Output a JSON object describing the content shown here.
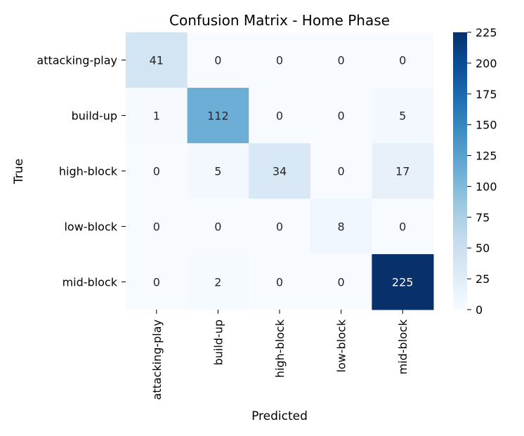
{
  "chart_data": {
    "type": "heatmap",
    "title": "Confusion Matrix - Home Phase",
    "xlabel": "Predicted",
    "ylabel": "True",
    "x_categories": [
      "attacking-play",
      "build-up",
      "high-block",
      "low-block",
      "mid-block"
    ],
    "y_categories": [
      "attacking-play",
      "build-up",
      "high-block",
      "low-block",
      "mid-block"
    ],
    "values": [
      [
        41,
        0,
        0,
        0,
        0
      ],
      [
        1,
        112,
        0,
        0,
        5
      ],
      [
        0,
        5,
        34,
        0,
        17
      ],
      [
        0,
        0,
        0,
        8,
        0
      ],
      [
        0,
        2,
        0,
        0,
        225
      ]
    ],
    "colorbar": {
      "min": 0,
      "max": 225,
      "ticks": [
        0,
        25,
        50,
        75,
        100,
        125,
        150,
        175,
        200,
        225
      ]
    },
    "colormap": "Blues",
    "colors": {
      "low": "#f7fbff",
      "high": "#08306b"
    }
  }
}
